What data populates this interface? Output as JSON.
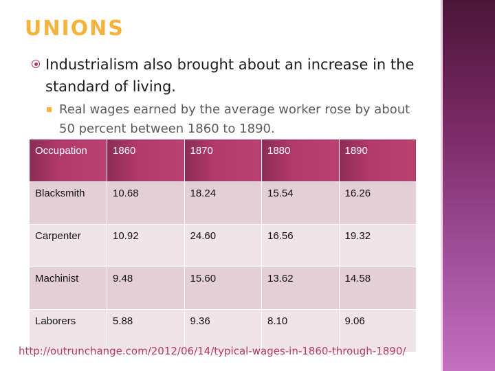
{
  "slide": {
    "title": "Unions",
    "bullet_main": "Industrialism also brought about an increase in the standard of living.",
    "bullet_sub": "Real wages earned by the average worker rose by about 50 percent between 1860 to 1890.",
    "source_url": "http://outrunchange.com/2012/06/14/typical-wages-in-1860-through-1890/"
  },
  "table": {
    "headers": [
      "Occupation",
      "1860",
      "1870",
      "1880",
      "1890"
    ],
    "rows": [
      [
        "Blacksmith",
        "10.68",
        "18.24",
        "15.54",
        "16.26"
      ],
      [
        "Carpenter",
        "10.92",
        "24.60",
        "16.56",
        "19.32"
      ],
      [
        "Machinist",
        "9.48",
        "15.60",
        "13.62",
        "14.58"
      ],
      [
        "Laborers",
        "5.88",
        "9.36",
        "8.10",
        "9.06"
      ]
    ]
  },
  "colors": {
    "accent_title": "#f3b33c",
    "accent_bullet": "#b23a6b",
    "header_fill": "#b23a6b",
    "row_odd": "#e5cfd6",
    "row_even": "#f1e4e8",
    "side_band": "#7b2a66"
  },
  "icons": {
    "main_bullet": "circled-dot-icon",
    "sub_bullet": "square-bullet-icon"
  }
}
